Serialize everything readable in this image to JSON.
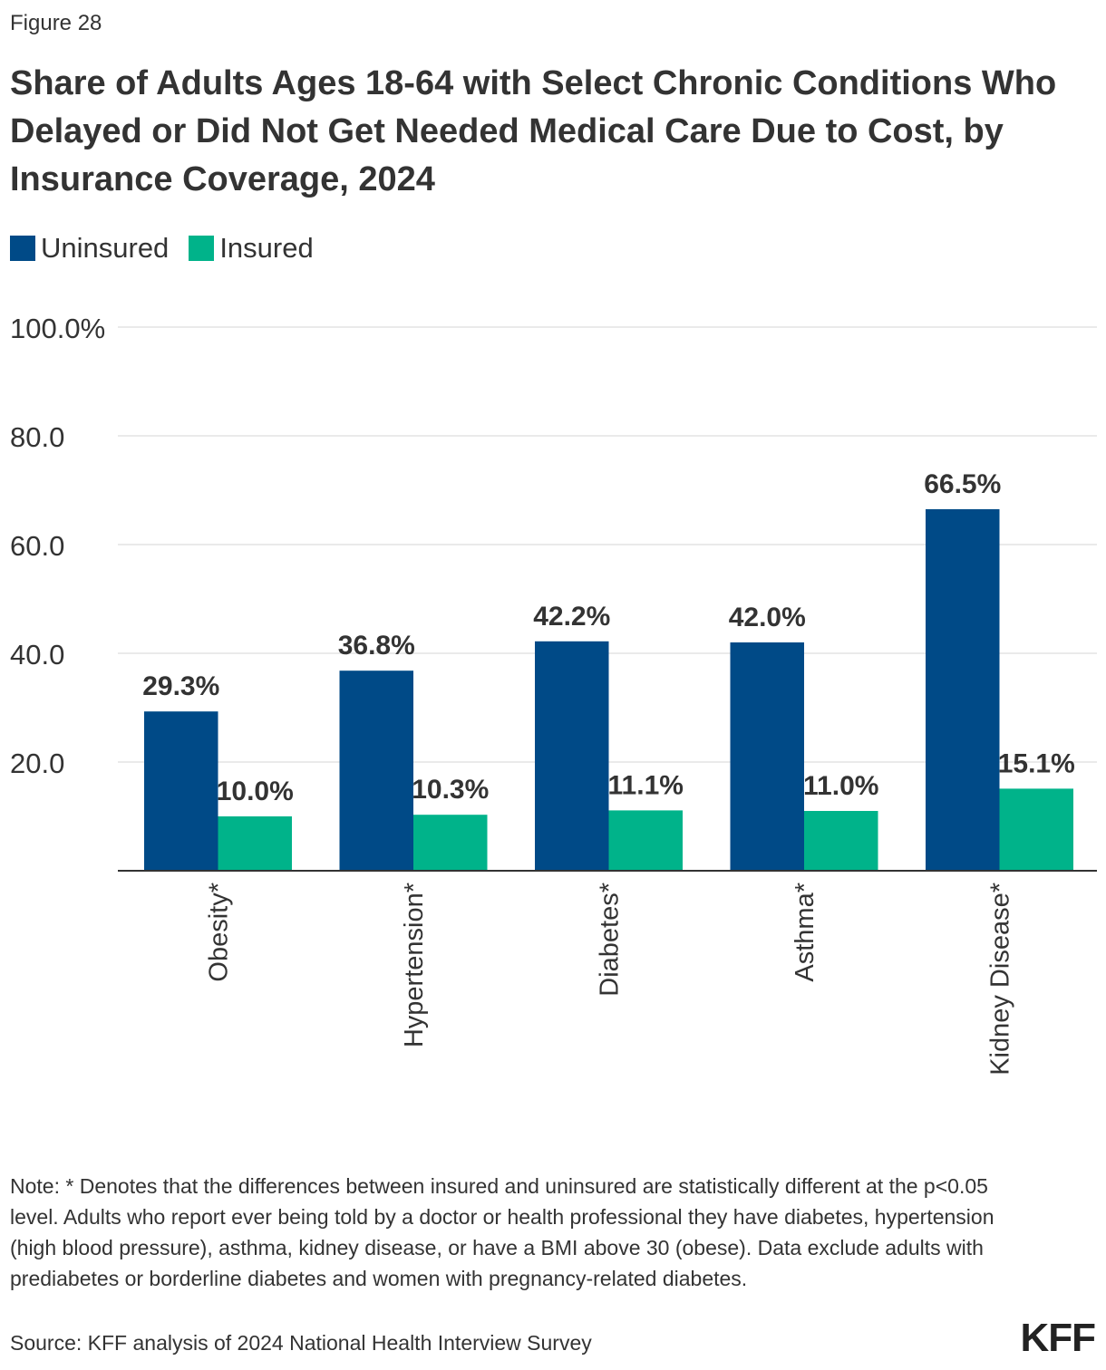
{
  "figure_label": "Figure 28",
  "note": "Note: * Denotes that the differences between insured and uninsured are statistically different at the p<0.05 level. Adults who report ever being told by a doctor or health professional they have diabetes, hypertension (high blood pressure), asthma, kidney disease, or have a BMI above 30 (obese). Data exclude adults with prediabetes or borderline diabetes and women with pregnancy-related diabetes.",
  "source": "Source: KFF analysis of 2024 National Health Interview Survey",
  "logo": "KFF",
  "chart_data": {
    "type": "bar",
    "title": "Share of Adults Ages 18-64 with Select Chronic Conditions Who Delayed or Did Not Get Needed Medical Care Due to Cost, by Insurance Coverage, 2024",
    "categories": [
      "Obesity*",
      "Hypertension*",
      "Diabetes*",
      "Asthma*",
      "Kidney Disease*"
    ],
    "series": [
      {
        "name": "Uninsured",
        "color": "#004a87",
        "values": [
          29.3,
          36.8,
          42.2,
          42.0,
          66.5
        ],
        "labels": [
          "29.3%",
          "36.8%",
          "42.2%",
          "42.0%",
          "66.5%"
        ]
      },
      {
        "name": "Insured",
        "color": "#00b38a",
        "values": [
          10.0,
          10.3,
          11.1,
          11.0,
          15.1
        ],
        "labels": [
          "10.0%",
          "10.3%",
          "11.1%",
          "11.0%",
          "15.1%"
        ]
      }
    ],
    "ylim": [
      0,
      100
    ],
    "yticks": [
      20,
      40,
      60,
      80,
      100
    ],
    "ytick_labels": [
      "20.0",
      "40.0",
      "60.0",
      "80.0",
      "100.0%"
    ],
    "grid": true,
    "legend_placement": "top-left"
  }
}
